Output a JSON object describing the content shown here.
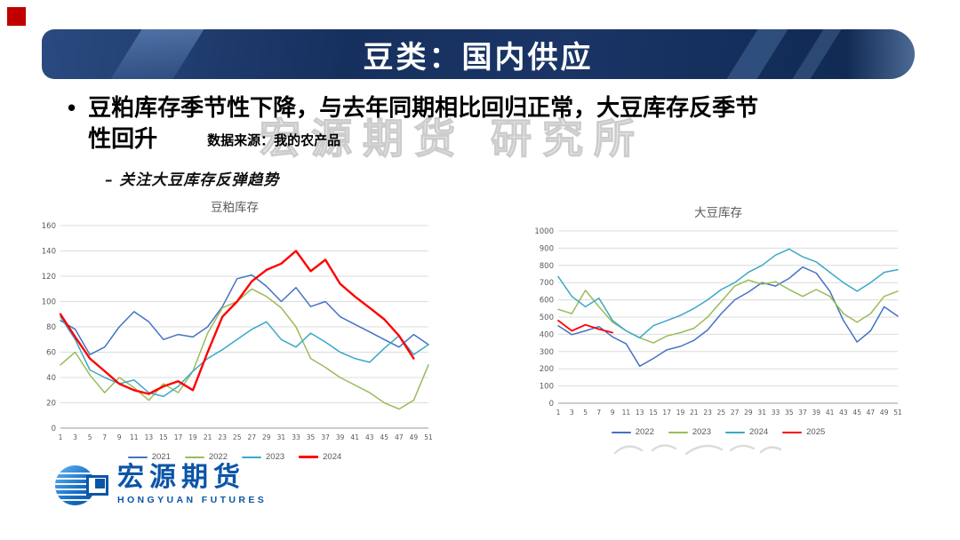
{
  "slide": {
    "title": "豆类：国内供应",
    "bullet_marker": "•",
    "bullet_main": "豆粕库存季节性下降，与去年同期相比回归正常，大豆库存反季节性回升",
    "source_note": "数据来源：我的农产品",
    "sub_bullet": "– 关注大豆库存反弹趋势",
    "watermark": "宏源期货 研究所"
  },
  "logo": {
    "name": "宏源期货",
    "subtitle": "HONGYUAN FUTURES"
  },
  "colors": {
    "banner_navy": "#16305E",
    "corner_red": "#C00000",
    "logo_blue": "#0B55A8",
    "grid_gray": "#DCDCDC",
    "tick_gray": "#595959",
    "series_blue": "#4472C4",
    "series_olive": "#9BBB59",
    "series_cyan": "#3BA8C8",
    "series_red": "#FF0000"
  },
  "chart_data": [
    {
      "type": "line",
      "title": "豆粕库存",
      "xlabel": "",
      "ylabel": "",
      "x": [
        1,
        3,
        5,
        7,
        9,
        11,
        13,
        15,
        17,
        19,
        21,
        23,
        25,
        27,
        29,
        31,
        33,
        35,
        37,
        39,
        41,
        43,
        45,
        47,
        49,
        51
      ],
      "ylim": [
        0,
        160
      ],
      "yticks": [
        0,
        20,
        40,
        60,
        80,
        100,
        120,
        140,
        160
      ],
      "grid": true,
      "legend_position": "bottom",
      "series": [
        {
          "name": "2021",
          "color": "#4472C4",
          "width": 1.5,
          "values": [
            85,
            78,
            58,
            64,
            80,
            92,
            84,
            70,
            74,
            72,
            80,
            96,
            118,
            121,
            112,
            100,
            111,
            96,
            100,
            88,
            82,
            76,
            70,
            64,
            74,
            66
          ]
        },
        {
          "name": "2022",
          "color": "#9BBB59",
          "width": 1.5,
          "values": [
            50,
            60,
            42,
            28,
            40,
            32,
            22,
            35,
            28,
            45,
            75,
            95,
            100,
            110,
            104,
            95,
            80,
            55,
            48,
            40,
            34,
            28,
            20,
            15,
            22,
            50
          ]
        },
        {
          "name": "2023",
          "color": "#3BA8C8",
          "width": 1.5,
          "values": [
            88,
            70,
            46,
            40,
            35,
            38,
            28,
            25,
            33,
            45,
            55,
            62,
            70,
            78,
            84,
            70,
            64,
            75,
            68,
            60,
            55,
            52,
            63,
            73,
            58,
            66
          ]
        },
        {
          "name": "2024",
          "color": "#FF0000",
          "width": 2.4,
          "values": [
            90,
            72,
            55,
            45,
            35,
            30,
            27,
            33,
            37,
            30,
            60,
            88,
            100,
            116,
            125,
            130,
            140,
            124,
            133,
            114,
            104,
            95,
            86,
            73,
            55,
            null
          ]
        }
      ]
    },
    {
      "type": "line",
      "title": "大豆库存",
      "xlabel": "",
      "ylabel": "",
      "x": [
        1,
        3,
        5,
        7,
        9,
        11,
        13,
        15,
        17,
        19,
        21,
        23,
        25,
        27,
        29,
        31,
        33,
        35,
        37,
        39,
        41,
        43,
        45,
        47,
        49,
        51
      ],
      "ylim": [
        0,
        1000
      ],
      "yticks": [
        0,
        100,
        200,
        300,
        400,
        500,
        600,
        700,
        800,
        900,
        1000
      ],
      "grid": true,
      "legend_position": "bottom",
      "series": [
        {
          "name": "2022",
          "color": "#4472C4",
          "width": 1.5,
          "values": [
            450,
            398,
            420,
            445,
            385,
            345,
            215,
            260,
            310,
            330,
            365,
            425,
            520,
            600,
            645,
            700,
            680,
            725,
            790,
            755,
            650,
            480,
            355,
            420,
            560,
            505
          ]
        },
        {
          "name": "2023",
          "color": "#9BBB59",
          "width": 1.5,
          "values": [
            545,
            520,
            655,
            560,
            470,
            420,
            380,
            350,
            390,
            410,
            435,
            500,
            590,
            680,
            715,
            690,
            705,
            660,
            620,
            660,
            620,
            520,
            470,
            520,
            620,
            650
          ]
        },
        {
          "name": "2024",
          "color": "#3BA8C8",
          "width": 1.5,
          "values": [
            735,
            620,
            560,
            610,
            480,
            420,
            380,
            450,
            480,
            510,
            550,
            600,
            660,
            700,
            760,
            800,
            860,
            895,
            850,
            820,
            760,
            700,
            650,
            700,
            760,
            775
          ]
        },
        {
          "name": "2025",
          "color": "#FF0000",
          "width": 1.8,
          "values": [
            480,
            420,
            455,
            430,
            410,
            null,
            null,
            null,
            null,
            null,
            null,
            null,
            null,
            null,
            null,
            null,
            null,
            null,
            null,
            null,
            null,
            null,
            null,
            null,
            null,
            null
          ]
        }
      ]
    }
  ]
}
